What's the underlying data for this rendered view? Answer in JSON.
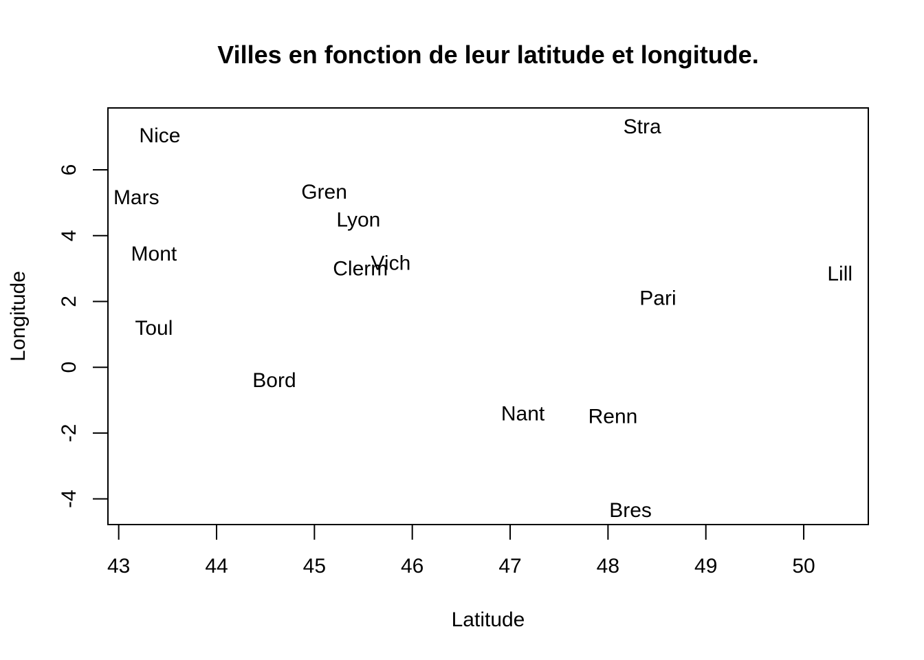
{
  "chart_data": {
    "type": "scatter",
    "title": "Villes en fonction de leur latitude et longitude.",
    "xlabel": "Latitude",
    "ylabel": "Longitude",
    "xlim": [
      42.89,
      50.66
    ],
    "ylim": [
      -4.78,
      7.88
    ],
    "x_ticks": [
      43,
      44,
      45,
      46,
      47,
      48,
      49,
      50
    ],
    "y_ticks": [
      -4,
      -2,
      0,
      2,
      4,
      6
    ],
    "grid": false,
    "legend": "none",
    "points": [
      {
        "label": "Nice",
        "x": 43.42,
        "y": 7.03
      },
      {
        "label": "Mars",
        "x": 43.18,
        "y": 5.15
      },
      {
        "label": "Mont",
        "x": 43.36,
        "y": 3.44
      },
      {
        "label": "Toul",
        "x": 43.36,
        "y": 1.18
      },
      {
        "label": "Bord",
        "x": 44.59,
        "y": -0.4
      },
      {
        "label": "Gren",
        "x": 45.1,
        "y": 5.32
      },
      {
        "label": "Lyon",
        "x": 45.45,
        "y": 4.47
      },
      {
        "label": "Clerm",
        "x": 45.47,
        "y": 2.99
      },
      {
        "label": "Vich",
        "x": 45.78,
        "y": 3.16
      },
      {
        "label": "Nant",
        "x": 47.13,
        "y": -1.42
      },
      {
        "label": "Renn",
        "x": 48.05,
        "y": -1.5
      },
      {
        "label": "Bres",
        "x": 48.23,
        "y": -4.35
      },
      {
        "label": "Stra",
        "x": 48.35,
        "y": 7.31
      },
      {
        "label": "Pari",
        "x": 48.51,
        "y": 2.09
      },
      {
        "label": "Lill",
        "x": 50.37,
        "y": 2.83
      }
    ]
  }
}
